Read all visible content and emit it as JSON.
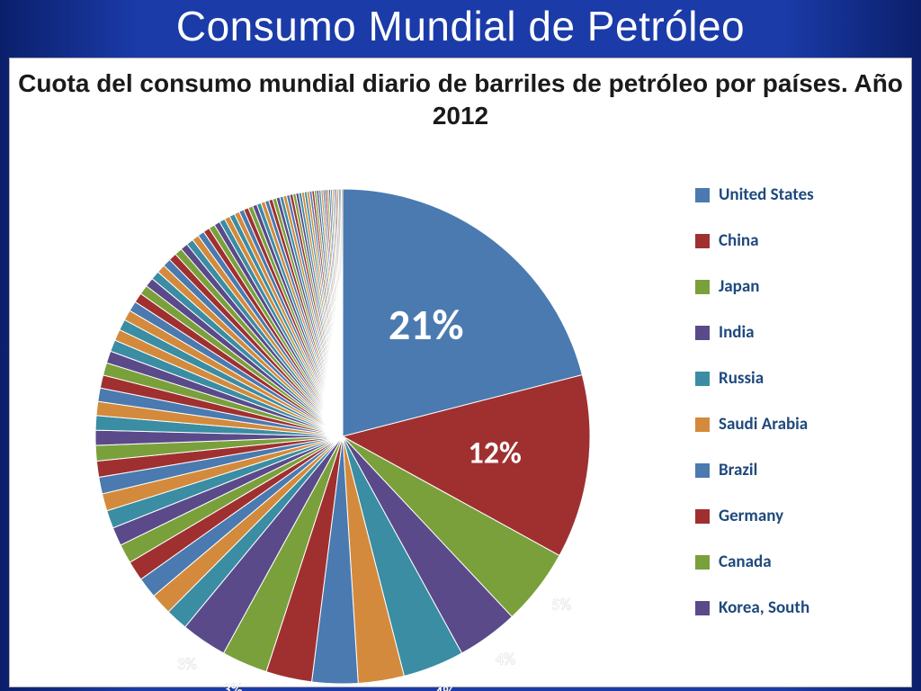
{
  "slide": {
    "title": "Consumo Mundial de Petróleo",
    "title_color": "#ffffff",
    "title_fontfamily": "Impact",
    "title_fontsize": 46,
    "bg_gradient": [
      "#0b1f6b",
      "#1a3ba8",
      "#1a3ba8",
      "#0b1f6b"
    ]
  },
  "chart": {
    "type": "pie",
    "title": "Cuota del consumo mundial diario de barriles de petróleo por países. Año 2012",
    "title_fontsize": 28,
    "title_fontfamily": "Verdana",
    "title_color": "#1a1a1a",
    "background_color": "#ffffff",
    "border_color": "#b0b0b0",
    "big_slices": [
      {
        "name": "United States",
        "value": 21,
        "label": "21%",
        "color": "#4a7ab0",
        "label_fontsize": 48
      },
      {
        "name": "China",
        "value": 12,
        "label": "12%",
        "color": "#a03030",
        "label_fontsize": 34
      },
      {
        "name": "Japan",
        "value": 5,
        "label": "5%",
        "color": "#7aa03c",
        "label_fontsize": 18
      },
      {
        "name": "India",
        "value": 4,
        "label": "4%",
        "color": "#5a4a8a",
        "label_fontsize": 18
      },
      {
        "name": "Russia",
        "value": 4,
        "label": "4%",
        "color": "#3a8da3",
        "label_fontsize": 18
      },
      {
        "name": "Saudi Arabia",
        "value": 3,
        "label": "3%",
        "color": "#d48a3c",
        "label_fontsize": 18
      },
      {
        "name": "Brazil",
        "value": 3,
        "label": "3%",
        "color": "#4a7ab0",
        "label_fontsize": 18
      },
      {
        "name": "Germany",
        "value": 3,
        "label": "3%",
        "color": "#a03030",
        "label_fontsize": 18
      },
      {
        "name": "Canada",
        "value": 3,
        "label": "3%",
        "color": "#7aa03c",
        "label_fontsize": 18
      },
      {
        "name": "Korea, South",
        "value": 3,
        "label": "3%",
        "color": "#5a4a8a",
        "label_fontsize": 18
      }
    ],
    "small_slice_palette": [
      "#3a8da3",
      "#d48a3c",
      "#4a7ab0",
      "#a03030",
      "#7aa03c",
      "#5a4a8a",
      "#3a8da3",
      "#d48a3c",
      "#4a7ab0",
      "#a03030",
      "#7aa03c",
      "#5a4a8a",
      "#3a8da3",
      "#d48a3c",
      "#4a7ab0",
      "#a03030",
      "#7aa03c",
      "#5a4a8a",
      "#3a8da3",
      "#d48a3c"
    ],
    "small_slice_count": 80,
    "small_slice_total": 39,
    "legend": {
      "font_color": "#1f497d",
      "font_size": 19,
      "font_weight": "bold",
      "items": [
        {
          "label": "United States",
          "color": "#4a7ab0"
        },
        {
          "label": "China",
          "color": "#a03030"
        },
        {
          "label": "Japan",
          "color": "#7aa03c"
        },
        {
          "label": "India",
          "color": "#5a4a8a"
        },
        {
          "label": "Russia",
          "color": "#3a8da3"
        },
        {
          "label": "Saudi Arabia",
          "color": "#d48a3c"
        },
        {
          "label": "Brazil",
          "color": "#4a7ab0"
        },
        {
          "label": "Germany",
          "color": "#a03030"
        },
        {
          "label": "Canada",
          "color": "#7aa03c"
        },
        {
          "label": "Korea, South",
          "color": "#5a4a8a"
        }
      ]
    },
    "label_style": {
      "color": "#ffffff",
      "big_outside_radius": 1.25,
      "normal_outside_radius": 1.12
    },
    "pie_center": [
      310,
      300
    ],
    "pie_radius": 275,
    "slice_border_color": "#ffffff",
    "slice_border_width": 1
  }
}
